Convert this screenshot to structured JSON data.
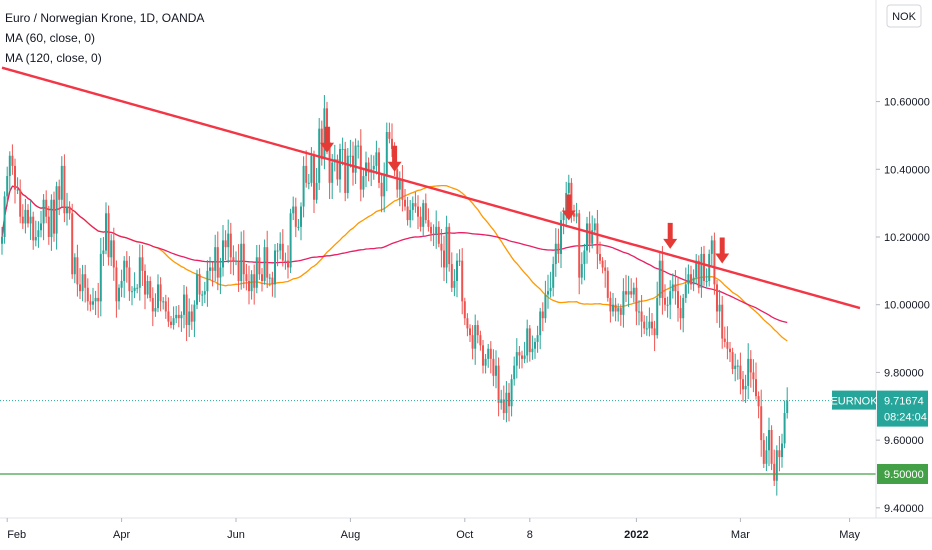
{
  "legend": {
    "title": "Euro / Norwegian Krone, 1D, OANDA",
    "ma60": "MA (60, close, 0)",
    "ma120": "MA (120, close, 0)"
  },
  "currency_button": "NOK",
  "price_label": {
    "symbol": "EURNOK",
    "price": "9.71674",
    "countdown": "08:24:04"
  },
  "support_label": "9.50000",
  "colors": {
    "up": "#26a69a",
    "down": "#ef5350",
    "ma60": "#ff9800",
    "ma120": "#e91e63",
    "trendline": "#f23645",
    "support": "#43a047",
    "arrow": "#e53935",
    "price_tag": "#26a69a"
  },
  "chart_data": {
    "type": "candlestick",
    "title": "Euro / Norwegian Krone, 1D, OANDA",
    "y_axis": {
      "ylim": [
        9.37,
        10.9
      ],
      "ticks": [
        "10.60000",
        "10.40000",
        "10.20000",
        "10.00000",
        "9.80000",
        "9.60000",
        "9.40000"
      ],
      "tick_values": [
        10.6,
        10.4,
        10.2,
        10.0,
        9.8,
        9.6,
        9.4
      ],
      "grid": false
    },
    "x_axis": {
      "ticks": [
        "Feb",
        "Apr",
        "Jun",
        "Aug",
        "Oct",
        "8",
        "2022",
        "Mar",
        "May"
      ],
      "tick_bold": [
        false,
        false,
        false,
        false,
        false,
        false,
        true,
        false,
        false
      ],
      "tick_index": [
        2,
        46,
        90,
        134,
        178,
        203,
        244,
        284,
        326
      ]
    },
    "last_price": 9.71674,
    "support_level": 9.5,
    "trendline": {
      "start": {
        "index": 0,
        "value": 10.7
      },
      "end": {
        "index": 330,
        "value": 9.99
      }
    },
    "arrows_at_index": [
      125,
      151,
      218,
      257,
      277
    ],
    "close_series": [
      10.2,
      10.32,
      10.38,
      10.44,
      10.41,
      10.34,
      10.34,
      10.26,
      10.24,
      10.28,
      10.24,
      10.26,
      10.19,
      10.2,
      10.22,
      10.24,
      10.31,
      10.26,
      10.2,
      10.31,
      10.21,
      10.35,
      10.31,
      10.41,
      10.27,
      10.29,
      10.27,
      10.09,
      10.14,
      10.06,
      10.04,
      10.09,
      10.05,
      10.01,
      10.0,
      10.01,
      10.02,
      10.01,
      10.15,
      10.16,
      10.27,
      10.14,
      10.19,
      10.11,
      10.01,
      10.05,
      10.07,
      10.13,
      10.11,
      10.04,
      10.04,
      10.05,
      10.05,
      10.14,
      10.1,
      10.03,
      10.07,
      10.02,
      9.98,
      9.99,
      10.06,
      10.01,
      10.01,
      9.98,
      9.95,
      9.94,
      9.96,
      9.97,
      9.96,
      9.97,
      10.03,
      9.94,
      9.98,
      9.95,
      10.0,
      10.09,
      10.03,
      10.03,
      10.04,
      10.1,
      10.11,
      10.1,
      10.17,
      10.08,
      10.11,
      10.19,
      10.17,
      10.21,
      10.14,
      10.13,
      10.13,
      10.07,
      10.18,
      10.09,
      10.07,
      10.04,
      10.09,
      10.05,
      10.14,
      10.09,
      10.07,
      10.17,
      10.08,
      10.08,
      10.06,
      10.16,
      10.16,
      10.18,
      10.13,
      10.13,
      10.11,
      10.27,
      10.29,
      10.23,
      10.23,
      10.29,
      10.41,
      10.36,
      10.36,
      10.44,
      10.31,
      10.36,
      10.52,
      10.43,
      10.58,
      10.48,
      10.36,
      10.42,
      10.43,
      10.37,
      10.46,
      10.46,
      10.33,
      10.44,
      10.44,
      10.39,
      10.47,
      10.47,
      10.34,
      10.38,
      10.42,
      10.39,
      10.4,
      10.41,
      10.45,
      10.36,
      10.32,
      10.38,
      10.51,
      10.49,
      10.46,
      10.4,
      10.34,
      10.37,
      10.31,
      10.29,
      10.25,
      10.28,
      10.3,
      10.29,
      10.26,
      10.23,
      10.3,
      10.25,
      10.23,
      10.21,
      10.21,
      10.23,
      10.18,
      10.16,
      10.11,
      10.23,
      10.12,
      10.05,
      10.07,
      10.13,
      10.13,
      10.01,
      9.96,
      9.93,
      9.91,
      9.87,
      9.94,
      9.91,
      9.88,
      9.82,
      9.84,
      9.87,
      9.84,
      9.79,
      9.82,
      9.71,
      9.72,
      9.68,
      9.74,
      9.7,
      9.78,
      9.82,
      9.86,
      9.85,
      9.84,
      9.85,
      9.93,
      9.86,
      9.87,
      9.89,
      9.91,
      9.98,
      9.96,
      10.03,
      10.04,
      10.05,
      10.12,
      10.18,
      10.15,
      10.25,
      10.27,
      10.33,
      10.36,
      10.27,
      10.26,
      10.27,
      10.08,
      10.12,
      10.16,
      10.24,
      10.18,
      10.22,
      10.24,
      10.15,
      10.13,
      10.11,
      10.1,
      10.02,
      9.98,
      10.0,
      9.98,
      9.99,
      9.97,
      10.04,
      10.03,
      10.04,
      10.03,
      10.05,
      9.98,
      9.98,
      9.95,
      9.93,
      9.93,
      9.95,
      9.93,
      9.91,
      10.02,
      10.13,
      10.02,
      10.0,
      10.0,
      10.04,
      10.06,
      10.04,
      9.99,
      9.96,
      10.02,
      10.06,
      10.09,
      10.06,
      10.08,
      10.13,
      10.05,
      10.15,
      10.07,
      10.07,
      10.15,
      10.19,
      10.06,
      9.98,
      10.0,
      9.9,
      9.89,
      9.87,
      9.86,
      9.81,
      9.82,
      9.82,
      9.78,
      9.75,
      9.76,
      9.84,
      9.8,
      9.78,
      9.73,
      9.7,
      9.6,
      9.53,
      9.57,
      9.63,
      9.53,
      9.48,
      9.57,
      9.55,
      9.59,
      9.68,
      9.71674
    ],
    "series": [
      {
        "name": "MA (60, close, 0)",
        "color": "#ff9800"
      },
      {
        "name": "MA (120, close, 0)",
        "color": "#e91e63"
      }
    ]
  }
}
